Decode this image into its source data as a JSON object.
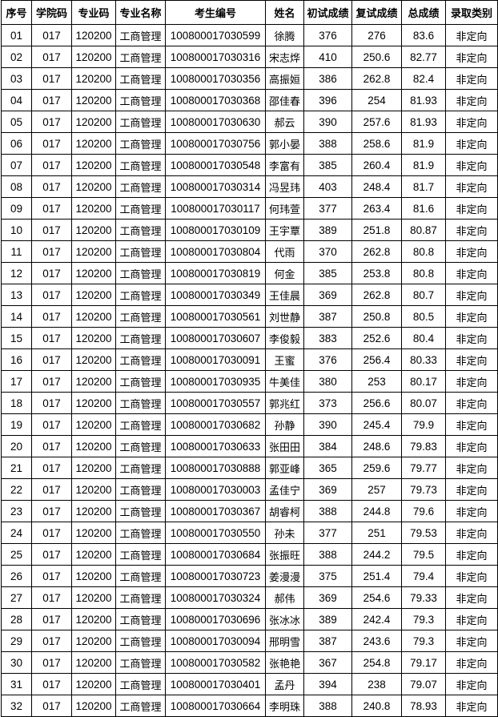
{
  "headers": [
    "序号",
    "学院码",
    "专业码",
    "专业名称",
    "考生编号",
    "姓名",
    "初试成绩",
    "复试成绩",
    "总成绩",
    "录取类别"
  ],
  "rows": [
    [
      "01",
      "017",
      "120200",
      "工商管理",
      "100800017030599",
      "徐腾",
      "376",
      "276",
      "83.6",
      "非定向"
    ],
    [
      "02",
      "017",
      "120200",
      "工商管理",
      "100800017030316",
      "宋志烨",
      "410",
      "250.6",
      "82.77",
      "非定向"
    ],
    [
      "03",
      "017",
      "120200",
      "工商管理",
      "100800017030356",
      "高振姮",
      "386",
      "262.8",
      "82.4",
      "非定向"
    ],
    [
      "04",
      "017",
      "120200",
      "工商管理",
      "100800017030368",
      "邵佳春",
      "396",
      "254",
      "81.93",
      "非定向"
    ],
    [
      "05",
      "017",
      "120200",
      "工商管理",
      "100800017030630",
      "郝云",
      "390",
      "257.6",
      "81.93",
      "非定向"
    ],
    [
      "06",
      "017",
      "120200",
      "工商管理",
      "100800017030756",
      "郭小晏",
      "388",
      "258.6",
      "81.9",
      "非定向"
    ],
    [
      "07",
      "017",
      "120200",
      "工商管理",
      "100800017030548",
      "李富有",
      "385",
      "260.4",
      "81.9",
      "非定向"
    ],
    [
      "08",
      "017",
      "120200",
      "工商管理",
      "100800017030314",
      "冯昱玮",
      "403",
      "248.4",
      "81.7",
      "非定向"
    ],
    [
      "09",
      "017",
      "120200",
      "工商管理",
      "100800017030117",
      "何玮萱",
      "377",
      "263.4",
      "81.6",
      "非定向"
    ],
    [
      "10",
      "017",
      "120200",
      "工商管理",
      "100800017030109",
      "王宇覃",
      "389",
      "251.8",
      "80.87",
      "非定向"
    ],
    [
      "11",
      "017",
      "120200",
      "工商管理",
      "100800017030804",
      "代雨",
      "370",
      "262.8",
      "80.8",
      "非定向"
    ],
    [
      "12",
      "017",
      "120200",
      "工商管理",
      "100800017030819",
      "何金",
      "385",
      "253.8",
      "80.8",
      "非定向"
    ],
    [
      "13",
      "017",
      "120200",
      "工商管理",
      "100800017030349",
      "王佳晨",
      "369",
      "262.8",
      "80.7",
      "非定向"
    ],
    [
      "14",
      "017",
      "120200",
      "工商管理",
      "100800017030561",
      "刘世静",
      "387",
      "250.8",
      "80.5",
      "非定向"
    ],
    [
      "15",
      "017",
      "120200",
      "工商管理",
      "100800017030607",
      "李俊毅",
      "383",
      "252.6",
      "80.4",
      "非定向"
    ],
    [
      "16",
      "017",
      "120200",
      "工商管理",
      "100800017030091",
      "王蜜",
      "376",
      "256.4",
      "80.33",
      "非定向"
    ],
    [
      "17",
      "017",
      "120200",
      "工商管理",
      "100800017030935",
      "牛美佳",
      "380",
      "253",
      "80.17",
      "非定向"
    ],
    [
      "18",
      "017",
      "120200",
      "工商管理",
      "100800017030557",
      "郭兆红",
      "373",
      "256.6",
      "80.07",
      "非定向"
    ],
    [
      "19",
      "017",
      "120200",
      "工商管理",
      "100800017030682",
      "孙静",
      "390",
      "245.4",
      "79.9",
      "非定向"
    ],
    [
      "20",
      "017",
      "120200",
      "工商管理",
      "100800017030633",
      "张田田",
      "384",
      "248.6",
      "79.83",
      "非定向"
    ],
    [
      "21",
      "017",
      "120200",
      "工商管理",
      "100800017030888",
      "郭亚峰",
      "365",
      "259.6",
      "79.77",
      "非定向"
    ],
    [
      "22",
      "017",
      "120200",
      "工商管理",
      "100800017030003",
      "孟佳宁",
      "369",
      "257",
      "79.73",
      "非定向"
    ],
    [
      "23",
      "017",
      "120200",
      "工商管理",
      "100800017030367",
      "胡睿柯",
      "388",
      "244.8",
      "79.6",
      "非定向"
    ],
    [
      "24",
      "017",
      "120200",
      "工商管理",
      "100800017030550",
      "孙未",
      "377",
      "251",
      "79.53",
      "非定向"
    ],
    [
      "25",
      "017",
      "120200",
      "工商管理",
      "100800017030684",
      "张振旺",
      "388",
      "244.2",
      "79.5",
      "非定向"
    ],
    [
      "26",
      "017",
      "120200",
      "工商管理",
      "100800017030723",
      "姜漫漫",
      "375",
      "251.4",
      "79.4",
      "非定向"
    ],
    [
      "27",
      "017",
      "120200",
      "工商管理",
      "100800017030324",
      "郝伟",
      "369",
      "254.6",
      "79.33",
      "非定向"
    ],
    [
      "28",
      "017",
      "120200",
      "工商管理",
      "100800017030696",
      "张冰冰",
      "389",
      "242.4",
      "79.3",
      "非定向"
    ],
    [
      "29",
      "017",
      "120200",
      "工商管理",
      "100800017030094",
      "邢明雪",
      "387",
      "243.6",
      "79.3",
      "非定向"
    ],
    [
      "30",
      "017",
      "120200",
      "工商管理",
      "100800017030582",
      "张艳艳",
      "367",
      "254.8",
      "79.17",
      "非定向"
    ],
    [
      "31",
      "017",
      "120200",
      "工商管理",
      "100800017030401",
      "孟丹",
      "394",
      "238",
      "79.07",
      "非定向"
    ],
    [
      "32",
      "017",
      "120200",
      "工商管理",
      "100800017030664",
      "李明珠",
      "388",
      "240.8",
      "78.93",
      "非定向"
    ]
  ]
}
